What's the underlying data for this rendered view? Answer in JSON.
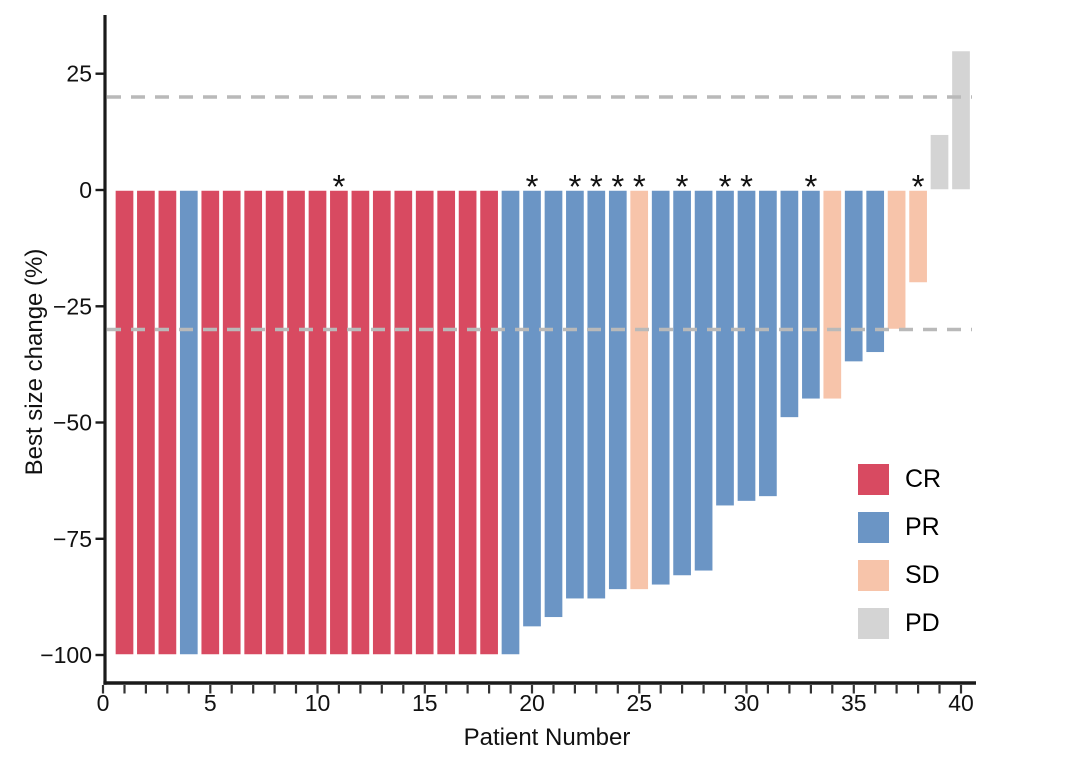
{
  "chart_data": {
    "type": "bar",
    "title": "",
    "xlabel": "Patient Number",
    "ylabel": "Best size change (%)",
    "x_tick_labels": [
      0,
      5,
      10,
      15,
      20,
      25,
      30,
      35,
      40
    ],
    "x_minor_tick_every": 1,
    "x_range": [
      0,
      41
    ],
    "y_tick_labels": [
      25,
      0,
      -25,
      -50,
      -75,
      -100
    ],
    "ylim": [
      -106,
      37
    ],
    "grid": "off",
    "legend_position": "inside-lower-right",
    "reference_lines": [
      {
        "y": 20,
        "style": "dashed",
        "color": "#b9b9b9"
      },
      {
        "y": -30,
        "style": "dashed",
        "color": "#b9b9b9"
      }
    ],
    "response_colors": {
      "CR": "#d84a61",
      "PR": "#6b95c5",
      "SD": "#f7c4aa",
      "PD": "#d4d4d4"
    },
    "legend": [
      {
        "label": "CR",
        "color": "#d84a61"
      },
      {
        "label": "PR",
        "color": "#6b95c5"
      },
      {
        "label": "SD",
        "color": "#f7c4aa"
      },
      {
        "label": "PD",
        "color": "#d4d4d4"
      }
    ],
    "annotation_symbol": "*",
    "patients": [
      {
        "n": 1,
        "value": -100,
        "response": "CR",
        "star": false
      },
      {
        "n": 2,
        "value": -100,
        "response": "CR",
        "star": false
      },
      {
        "n": 3,
        "value": -100,
        "response": "CR",
        "star": false
      },
      {
        "n": 4,
        "value": -100,
        "response": "PR",
        "star": false
      },
      {
        "n": 5,
        "value": -100,
        "response": "CR",
        "star": false
      },
      {
        "n": 6,
        "value": -100,
        "response": "CR",
        "star": false
      },
      {
        "n": 7,
        "value": -100,
        "response": "CR",
        "star": false
      },
      {
        "n": 8,
        "value": -100,
        "response": "CR",
        "star": false
      },
      {
        "n": 9,
        "value": -100,
        "response": "CR",
        "star": false
      },
      {
        "n": 10,
        "value": -100,
        "response": "CR",
        "star": false
      },
      {
        "n": 11,
        "value": -100,
        "response": "CR",
        "star": true
      },
      {
        "n": 12,
        "value": -100,
        "response": "CR",
        "star": false
      },
      {
        "n": 13,
        "value": -100,
        "response": "CR",
        "star": false
      },
      {
        "n": 14,
        "value": -100,
        "response": "CR",
        "star": false
      },
      {
        "n": 15,
        "value": -100,
        "response": "CR",
        "star": false
      },
      {
        "n": 16,
        "value": -100,
        "response": "CR",
        "star": false
      },
      {
        "n": 17,
        "value": -100,
        "response": "CR",
        "star": false
      },
      {
        "n": 18,
        "value": -100,
        "response": "CR",
        "star": false
      },
      {
        "n": 19,
        "value": -100,
        "response": "PR",
        "star": false
      },
      {
        "n": 20,
        "value": -94,
        "response": "PR",
        "star": true
      },
      {
        "n": 21,
        "value": -92,
        "response": "PR",
        "star": false
      },
      {
        "n": 22,
        "value": -88,
        "response": "PR",
        "star": true
      },
      {
        "n": 23,
        "value": -88,
        "response": "PR",
        "star": true
      },
      {
        "n": 24,
        "value": -86,
        "response": "PR",
        "star": true
      },
      {
        "n": 25,
        "value": -86,
        "response": "SD",
        "star": true
      },
      {
        "n": 26,
        "value": -85,
        "response": "PR",
        "star": false
      },
      {
        "n": 27,
        "value": -83,
        "response": "PR",
        "star": true
      },
      {
        "n": 28,
        "value": -82,
        "response": "PR",
        "star": false
      },
      {
        "n": 29,
        "value": -68,
        "response": "PR",
        "star": true
      },
      {
        "n": 30,
        "value": -67,
        "response": "PR",
        "star": true
      },
      {
        "n": 31,
        "value": -66,
        "response": "PR",
        "star": false
      },
      {
        "n": 32,
        "value": -49,
        "response": "PR",
        "star": false
      },
      {
        "n": 33,
        "value": -45,
        "response": "PR",
        "star": true
      },
      {
        "n": 34,
        "value": -45,
        "response": "SD",
        "star": false
      },
      {
        "n": 35,
        "value": -37,
        "response": "PR",
        "star": false
      },
      {
        "n": 36,
        "value": -35,
        "response": "PR",
        "star": false
      },
      {
        "n": 37,
        "value": -30,
        "response": "SD",
        "star": false
      },
      {
        "n": 38,
        "value": -20,
        "response": "SD",
        "star": true
      },
      {
        "n": 39,
        "value": 12,
        "response": "PD",
        "star": false
      },
      {
        "n": 40,
        "value": 30,
        "response": "PD",
        "star": false
      }
    ]
  }
}
